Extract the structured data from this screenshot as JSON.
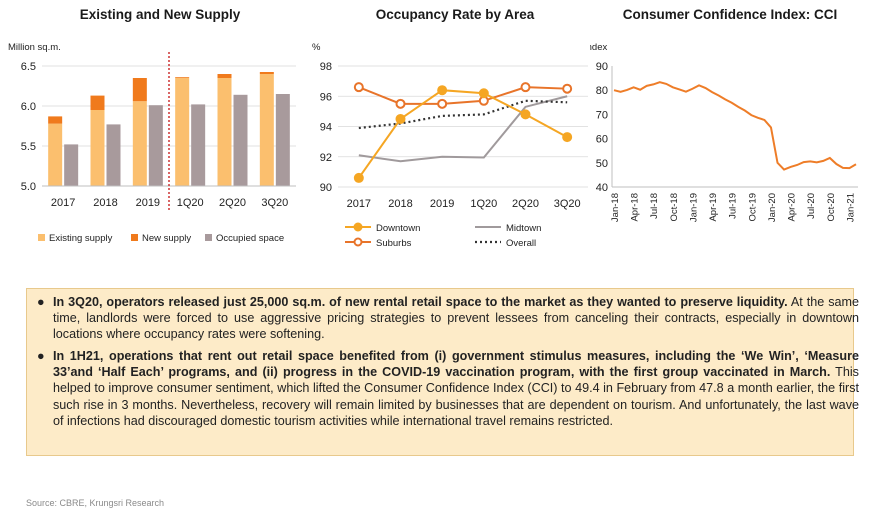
{
  "charts": {
    "supply": {
      "title": "Existing and New Supply",
      "ylabel": "Million sq.m.",
      "colors": {
        "existing": "#fbbf6e",
        "new": "#f07a1c",
        "occupied": "#a89a9c",
        "divider": "#c00000"
      }
    },
    "occupancy": {
      "title": "Occupancy Rate by Area",
      "ylabel": "%",
      "colors": {
        "downtown": "#f5a623",
        "midtown": "#a09a9c",
        "suburbs": "#e8742a",
        "overall": "#333333"
      }
    },
    "cci": {
      "title": "Consumer Confidence Index: CCI",
      "ylabel": "Index",
      "colors": {
        "line": "#ee7d28"
      }
    }
  },
  "chart_data": [
    {
      "type": "bar",
      "title": "Existing and New Supply",
      "ylabel": "Million sq.m.",
      "ylim": [
        5.0,
        6.5
      ],
      "yticks": [
        "5.0",
        "5.5",
        "6.0",
        "6.5"
      ],
      "categories": [
        "2017",
        "2018",
        "2019",
        "1Q20",
        "2Q20",
        "3Q20"
      ],
      "series": [
        {
          "name": "Existing supply",
          "values": [
            5.78,
            5.95,
            6.06,
            6.35,
            6.35,
            6.4
          ]
        },
        {
          "name": "New supply",
          "values": [
            0.09,
            0.18,
            0.29,
            0.01,
            0.05,
            0.025
          ]
        },
        {
          "name": "Occupied space",
          "values": [
            5.52,
            5.77,
            6.01,
            6.02,
            6.14,
            6.15
          ]
        }
      ],
      "stacked_series": [
        "Existing supply",
        "New supply"
      ],
      "divider_after_category": "2019"
    },
    {
      "type": "line",
      "title": "Occupancy Rate by Area",
      "ylabel": "%",
      "ylim": [
        90,
        98
      ],
      "yticks": [
        "90",
        "92",
        "94",
        "96",
        "98"
      ],
      "categories": [
        "2017",
        "2018",
        "2019",
        "1Q20",
        "2Q20",
        "3Q20"
      ],
      "series": [
        {
          "name": "Downtown",
          "values": [
            90.6,
            94.5,
            96.4,
            96.2,
            94.8,
            93.3
          ]
        },
        {
          "name": "Midtown",
          "values": [
            92.1,
            91.7,
            92.0,
            91.95,
            95.3,
            96.0
          ]
        },
        {
          "name": "Suburbs",
          "values": [
            96.6,
            95.5,
            95.5,
            95.7,
            96.6,
            96.5
          ]
        },
        {
          "name": "Overall",
          "values": [
            93.9,
            94.2,
            94.7,
            94.8,
            95.7,
            95.6
          ]
        }
      ]
    },
    {
      "type": "line",
      "title": "Consumer Confidence Index: CCI",
      "ylabel": "Index",
      "ylim": [
        40,
        90
      ],
      "yticks": [
        "40",
        "50",
        "60",
        "70",
        "80",
        "90"
      ],
      "x_labels": [
        "Jan-18",
        "Apr-18",
        "Jul-18",
        "Oct-18",
        "Jan-19",
        "Apr-19",
        "Jul-19",
        "Oct-19",
        "Jan-20",
        "Apr-20",
        "Jul-20",
        "Oct-20",
        "Jan-21"
      ],
      "months": [
        "Jan-18",
        "Feb-18",
        "Mar-18",
        "Apr-18",
        "May-18",
        "Jun-18",
        "Jul-18",
        "Aug-18",
        "Sep-18",
        "Oct-18",
        "Nov-18",
        "Dec-18",
        "Jan-19",
        "Feb-19",
        "Mar-19",
        "Apr-19",
        "May-19",
        "Jun-19",
        "Jul-19",
        "Aug-19",
        "Sep-19",
        "Oct-19",
        "Nov-19",
        "Dec-19",
        "Jan-20",
        "Feb-20",
        "Mar-20",
        "Apr-20",
        "May-20",
        "Jun-20",
        "Jul-20",
        "Aug-20",
        "Sep-20",
        "Oct-20",
        "Nov-20",
        "Dec-20",
        "Jan-21",
        "Feb-21"
      ],
      "values": [
        80,
        79.3,
        80.1,
        81.2,
        80.2,
        81.8,
        82.4,
        83.3,
        82.6,
        81.2,
        80.3,
        79.4,
        80.6,
        82,
        80.9,
        79.2,
        77.8,
        76.2,
        74.8,
        73.1,
        71.6,
        69.7,
        68.6,
        67.7,
        64.6,
        50,
        47.2,
        48.3,
        49.1,
        50.3,
        50.6,
        50.2,
        50.8,
        52,
        49.5,
        47.9,
        47.8,
        49.4
      ]
    }
  ],
  "text": {
    "bullet1_bold": "In 3Q20, operators released just 25,000 sq.m. of new rental retail space to the market as they wanted to preserve liquidity.",
    "bullet1_rest": " At the same time, landlords were forced to use aggressive pricing strategies to prevent lessees from canceling their contracts, especially in downtown locations where occupancy rates were softening.",
    "bullet2_bold": "In 1H21, operations that rent out retail space benefited from (i) government stimulus measures, including the ‘We Win’, ‘Measure 33’and ‘Half Each’ programs, and (ii) progress in the COVID-19 vaccination program, with the first group vaccinated in March.",
    "bullet2_rest": " This helped to improve consumer sentiment, which lifted the Consumer Confidence Index (CCI) to 49.4 in February from 47.8 a month earlier, the first such rise in 3 months. Nevertheless, recovery will remain limited by businesses that are dependent on tourism. And unfortunately, the last wave of infections had discouraged domestic tourism activities while international travel remains restricted.",
    "bullet_symbol": "●",
    "source": "Source: CBRE, Krungsri Research"
  }
}
